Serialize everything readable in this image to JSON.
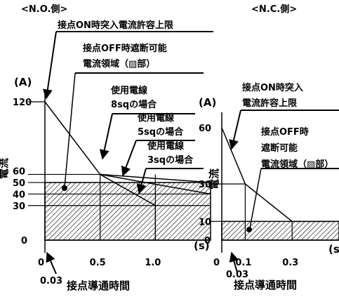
{
  "chart_data": [
    {
      "type": "line",
      "header": "<N.O.側>",
      "x_unit": "(s)",
      "y_unit": "(A)",
      "xlabel": "接点導通時間",
      "ylabel": "電流",
      "x_ticks": [
        {
          "value": 0,
          "label": "0"
        },
        {
          "value": 0.5,
          "label": "0.5"
        },
        {
          "value": 1.0,
          "label": "1.0"
        }
      ],
      "x_tick_small": {
        "value": 0.03,
        "label": "0.03"
      },
      "y_ticks": [
        {
          "value": 0,
          "label": "0"
        },
        {
          "value": 30,
          "label": "30"
        },
        {
          "value": 40,
          "label": "40"
        },
        {
          "value": 50,
          "label": "50"
        },
        {
          "value": 60,
          "label": "60"
        },
        {
          "value": 120,
          "label": "120"
        }
      ],
      "xlim": [
        0,
        1.5
      ],
      "ylim": [
        0,
        120
      ],
      "inrush_limit": {
        "x": [
          0,
          0.5
        ],
        "y": [
          120,
          57
        ]
      },
      "wire_curves": [
        {
          "label": "使用電線\n8sqの場合",
          "x": [
            0.5,
            1.5
          ],
          "y": [
            57,
            50
          ]
        },
        {
          "label": "使用電線\n5sqの場合",
          "x": [
            0.5,
            1.5
          ],
          "y": [
            57,
            40
          ]
        },
        {
          "label": "使用電線\n3sqの場合",
          "x": [
            0.5,
            1.0
          ],
          "y": [
            57,
            30
          ]
        }
      ],
      "breaking_region": {
        "y_max": 50
      },
      "annotations": [
        {
          "text": "接点ON時突入電流許容上限"
        },
        {
          "text": "接点OFF時遮断可能\n電流領域（▨部）"
        }
      ]
    },
    {
      "type": "line",
      "header": "<N.C.側>",
      "x_unit": "(s)",
      "y_unit": "(A)",
      "xlabel": "接点導通時間",
      "ylabel": "電流",
      "x_ticks": [
        {
          "value": 0,
          "label": "0"
        },
        {
          "value": 0.1,
          "label": "0.1"
        },
        {
          "value": 0.3,
          "label": "0.3"
        }
      ],
      "x_tick_small": {
        "value": 0.03,
        "label": "0.03"
      },
      "y_ticks": [
        {
          "value": 0,
          "label": "0"
        },
        {
          "value": 10,
          "label": "10"
        },
        {
          "value": 30,
          "label": "30"
        },
        {
          "value": 60,
          "label": "60"
        }
      ],
      "xlim": [
        0,
        0.5
      ],
      "ylim": [
        0,
        60
      ],
      "inrush_limit": {
        "x": [
          0,
          0.1,
          0.3,
          0.5
        ],
        "y": [
          60,
          30,
          10,
          10
        ]
      },
      "breaking_region": {
        "y_max": 10
      },
      "annotations": [
        {
          "text": "接点ON時突入\n電流許容上限"
        },
        {
          "text": "接点OFF時\n遮断可能\n電流領域（▨部）"
        }
      ]
    }
  ]
}
